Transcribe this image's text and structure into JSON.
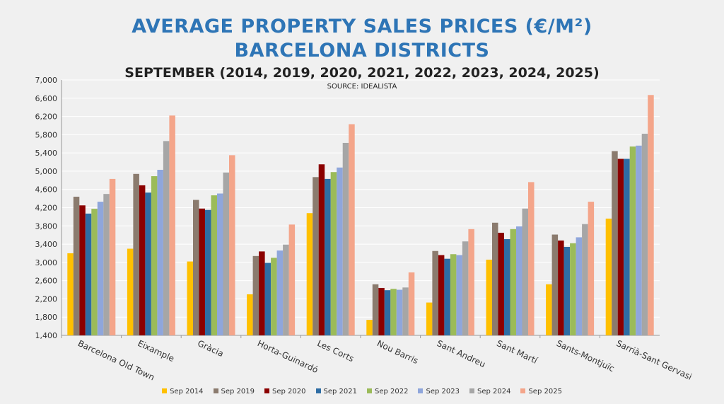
{
  "chart_data": {
    "type": "bar",
    "title": "AVERAGE PROPERTY SALES PRICES (€/M²)",
    "title2": "BARCELONA DISTRICTS",
    "subtitle": "SEPTEMBER (2014, 2019, 2020, 2021, 2022, 2023, 2024, 2025)",
    "source": "SOURCE: IDEALISTA",
    "ylim": [
      1400,
      7000
    ],
    "yticks": [
      "1,400",
      "1,800",
      "2,200",
      "2,600",
      "3,000",
      "3,400",
      "3,800",
      "4,200",
      "4,600",
      "5,000",
      "5,400",
      "5,800",
      "6,200",
      "6,600",
      "7,000"
    ],
    "grid": true,
    "legend_position": "bottom",
    "categories": [
      "Barcelona Old Town",
      "Eixample",
      "Gràcia",
      "Horta-Guinardó",
      "Les Corts",
      "Nou Barris",
      "Sant Andreu",
      "Sant Martí",
      "Sants-Montjuïc",
      "Sarrià-Sant Gervasi"
    ],
    "series": [
      {
        "name": "Sep 2014",
        "color": "#ffc000",
        "values": [
          3200,
          3300,
          3020,
          2300,
          4080,
          1740,
          2120,
          3060,
          2520,
          3960
        ]
      },
      {
        "name": "Sep 2019",
        "color": "#8b7b6e",
        "values": [
          4440,
          4940,
          4370,
          3140,
          4870,
          2520,
          3250,
          3870,
          3610,
          5440
        ]
      },
      {
        "name": "Sep 2020",
        "color": "#8b0000",
        "values": [
          4250,
          4690,
          4180,
          3240,
          5150,
          2440,
          3160,
          3650,
          3480,
          5270
        ]
      },
      {
        "name": "Sep 2021",
        "color": "#2e6da4",
        "values": [
          4070,
          4530,
          4150,
          2990,
          4830,
          2390,
          3080,
          3510,
          3340,
          5270
        ]
      },
      {
        "name": "Sep 2022",
        "color": "#9bbb59",
        "values": [
          4175,
          4890,
          4470,
          3100,
          4980,
          2420,
          3180,
          3730,
          3420,
          5540
        ]
      },
      {
        "name": "Sep 2023",
        "color": "#8fa6db",
        "values": [
          4330,
          5030,
          4510,
          3260,
          5080,
          2400,
          3160,
          3790,
          3550,
          5560
        ]
      },
      {
        "name": "Sep 2024",
        "color": "#a6a6a6",
        "values": [
          4500,
          5660,
          4970,
          3390,
          5620,
          2450,
          3460,
          4180,
          3840,
          5820
        ]
      },
      {
        "name": "Sep 2025",
        "color": "#f4a58a",
        "values": [
          4830,
          6220,
          5350,
          3830,
          6030,
          2780,
          3730,
          4760,
          4330,
          6670
        ]
      }
    ]
  }
}
